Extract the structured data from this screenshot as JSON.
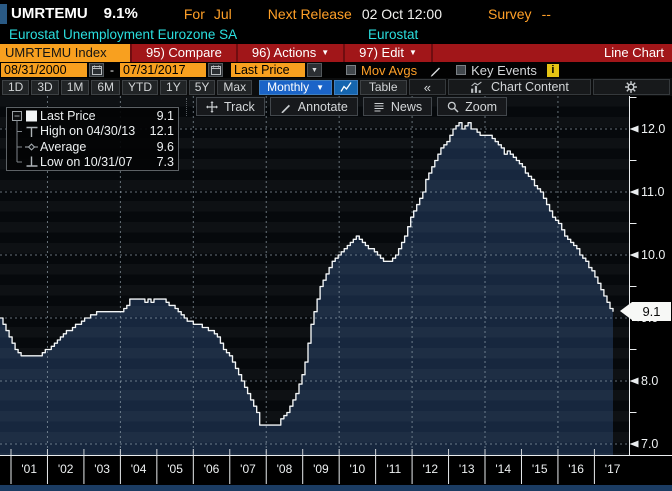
{
  "top_bar": {
    "ticker": "UMRTEMU",
    "value": "9.1%",
    "for_label": "For",
    "for_value": "Jul",
    "next_release_label": "Next Release",
    "next_release_value": "02 Oct 12:00",
    "survey_label": "Survey",
    "survey_value": "--"
  },
  "title_bar": {
    "description": "Eurostat Unemployment Eurozone SA",
    "source": "Eurostat"
  },
  "red_bar": {
    "security_tab": "UMRTEMU Index",
    "compare": "95) Compare",
    "actions": "96) Actions",
    "edit": "97) Edit",
    "view_label": "Line Chart"
  },
  "controls": {
    "start_date": "08/31/2000",
    "date_separator": "-",
    "end_date": "07/31/2017",
    "price_field": "Last Price",
    "mov_avgs_label": "Mov Avgs",
    "key_events_label": "Key Events",
    "info_icon": "i"
  },
  "range_bar": {
    "ranges": [
      "1D",
      "3D",
      "1M",
      "6M",
      "YTD",
      "1Y",
      "5Y",
      "Max"
    ],
    "period": "Monthly",
    "table_label": "Table",
    "collapse_label": "«",
    "chart_content_label": "Chart Content"
  },
  "chart_toolbar": {
    "buttons": [
      {
        "label": "Track",
        "icon": "track-crosshair"
      },
      {
        "label": "Annotate",
        "icon": "annotate-pencil"
      },
      {
        "label": "News",
        "icon": "news-lines"
      },
      {
        "label": "Zoom",
        "icon": "zoom-magnifier"
      }
    ]
  },
  "legend": {
    "rows": [
      {
        "marker": "filled-square",
        "label": "Last Price",
        "value": "9.1"
      },
      {
        "marker": "high-tee",
        "label": "High on 04/30/13",
        "value": "12.1"
      },
      {
        "marker": "average-diamond",
        "label": "Average",
        "value": "9.6"
      },
      {
        "marker": "low-tee",
        "label": "Low on 10/31/07",
        "value": "7.3"
      }
    ]
  },
  "chart_data": {
    "type": "area",
    "title": "Eurostat Unemployment Eurozone SA",
    "source": "Eurostat",
    "frequency": "Monthly",
    "start_date": "08/31/2000",
    "end_date": "07/31/2017",
    "grid": "dashed",
    "legend_position": "top-left",
    "ylim": [
      6.83,
      12.52
    ],
    "y_ticks": [
      12,
      11,
      10,
      9,
      8,
      7
    ],
    "y_tick_labels": [
      "12.0",
      "11.0",
      "10.0",
      "9.0",
      "8.0",
      "7.0"
    ],
    "x_tick_labels": [
      "'01",
      "'02",
      "'03",
      "'04",
      "'05",
      "'06",
      "'07",
      "'08",
      "'09",
      "'10",
      "'11",
      "'12",
      "'13",
      "'14",
      "'15",
      "'16",
      "'17"
    ],
    "last_label": "9.1",
    "stats": {
      "last": 9.1,
      "high": 12.1,
      "high_date": "04/30/13",
      "average": 9.6,
      "low": 7.3,
      "low_date": "10/31/07"
    },
    "series": [
      {
        "name": "Last Price",
        "start_month": "2000-08",
        "values": [
          9.0,
          8.9,
          8.8,
          8.7,
          8.6,
          8.5,
          8.45,
          8.4,
          8.4,
          8.4,
          8.4,
          8.4,
          8.4,
          8.4,
          8.45,
          8.5,
          8.5,
          8.55,
          8.6,
          8.65,
          8.7,
          8.75,
          8.8,
          8.8,
          8.85,
          8.9,
          8.9,
          8.95,
          9.0,
          9.0,
          9.05,
          9.05,
          9.1,
          9.1,
          9.1,
          9.1,
          9.1,
          9.1,
          9.1,
          9.1,
          9.1,
          9.15,
          9.2,
          9.3,
          9.3,
          9.3,
          9.3,
          9.3,
          9.25,
          9.3,
          9.25,
          9.3,
          9.3,
          9.3,
          9.3,
          9.25,
          9.2,
          9.2,
          9.15,
          9.1,
          9.05,
          9.0,
          8.95,
          8.95,
          8.9,
          8.9,
          8.9,
          8.85,
          8.85,
          8.8,
          8.8,
          8.75,
          8.7,
          8.6,
          8.5,
          8.45,
          8.4,
          8.3,
          8.2,
          8.1,
          8.0,
          7.9,
          7.8,
          7.7,
          7.6,
          7.5,
          7.3,
          7.3,
          7.3,
          7.3,
          7.3,
          7.3,
          7.3,
          7.4,
          7.45,
          7.5,
          7.6,
          7.7,
          7.8,
          7.95,
          8.1,
          8.3,
          8.6,
          8.9,
          9.1,
          9.3,
          9.5,
          9.6,
          9.7,
          9.8,
          9.9,
          9.95,
          10.0,
          10.05,
          10.1,
          10.15,
          10.2,
          10.25,
          10.3,
          10.25,
          10.2,
          10.15,
          10.1,
          10.1,
          10.05,
          10.0,
          9.95,
          9.9,
          9.9,
          9.9,
          9.95,
          10.0,
          10.1,
          10.2,
          10.3,
          10.45,
          10.6,
          10.7,
          10.8,
          10.9,
          11.0,
          11.2,
          11.3,
          11.4,
          11.5,
          11.6,
          11.7,
          11.75,
          11.8,
          11.9,
          12.0,
          12.05,
          12.1,
          12.0,
          12.05,
          12.1,
          12.0,
          12.0,
          11.95,
          11.9,
          11.9,
          11.9,
          11.9,
          11.85,
          11.8,
          11.75,
          11.7,
          11.6,
          11.65,
          11.6,
          11.55,
          11.5,
          11.45,
          11.4,
          11.3,
          11.25,
          11.2,
          11.1,
          11.05,
          11.0,
          10.9,
          10.8,
          10.7,
          10.6,
          10.55,
          10.5,
          10.4,
          10.3,
          10.25,
          10.2,
          10.15,
          10.1,
          10.0,
          9.95,
          9.9,
          9.8,
          9.75,
          9.65,
          9.55,
          9.45,
          9.35,
          9.25,
          9.15,
          9.1
        ]
      }
    ]
  },
  "colors": {
    "amber": "#ffa028",
    "cyan": "#2bdfdf",
    "red_bar": "#a11619",
    "tab_orange": "#f8a01f",
    "period_blue": "#1b64c8",
    "area_fill": "#17273e",
    "line": "#f3f6f7",
    "gridline": "#9fb0ba",
    "bottom_bar": "#1b3c63"
  }
}
